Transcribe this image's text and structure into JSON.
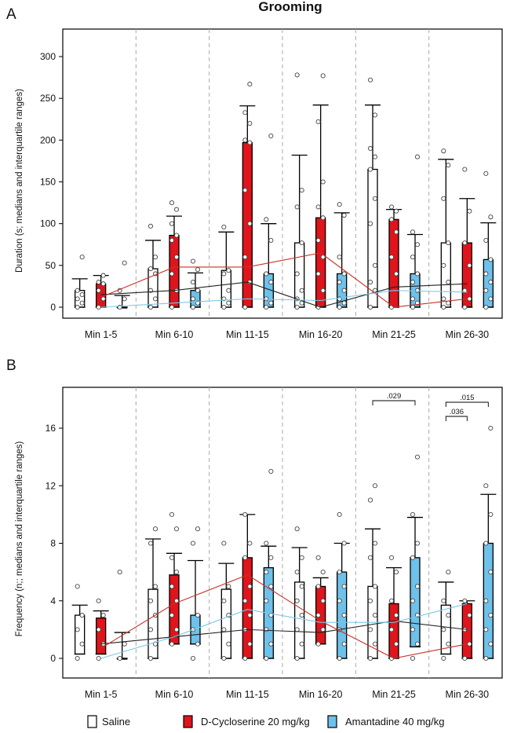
{
  "colors": {
    "saline": "#ffffff",
    "dcs": "#e0141b",
    "aman": "#6ec1ea",
    "line_saline": "#222222",
    "line_dcs": "#c8322b",
    "line_aman": "#7cc8e6"
  },
  "chart_data": [
    {
      "panel": "A",
      "type": "bar",
      "title": "Grooming",
      "ylabel": "Duration (s; medians and interquartile ranges)",
      "ylim": [
        0,
        330
      ],
      "yticks": [
        0,
        50,
        100,
        150,
        200,
        250,
        300
      ],
      "categories": [
        "Min 1-5",
        "Min 6-10",
        "Min 11-15",
        "Min 16-20",
        "Min 21-25",
        "Min 26-30"
      ],
      "series": [
        {
          "name": "Saline",
          "key": "saline",
          "values": [
            20,
            46,
            44,
            77,
            165,
            77
          ],
          "whisker": [
            34,
            80,
            90,
            182,
            242,
            177
          ],
          "points": [
            [
              0,
              5,
              10,
              15,
              20,
              60
            ],
            [
              0,
              10,
              20,
              40,
              46,
              60,
              97
            ],
            [
              0,
              5,
              10,
              20,
              40,
              44,
              96
            ],
            [
              0,
              5,
              10,
              20,
              40,
              77,
              120,
              140,
              278
            ],
            [
              0,
              20,
              30,
              50,
              100,
              130,
              165,
              180,
              190,
              230,
              272
            ],
            [
              0,
              5,
              10,
              30,
              50,
              77,
              130,
              170,
              187
            ]
          ],
          "median_line": [
            15,
            20,
            30,
            0,
            24,
            28
          ]
        },
        {
          "name": "D-Cycloserine 20 mg/kg",
          "key": "dcs",
          "values": [
            28,
            86,
            197,
            107,
            105,
            77
          ],
          "whisker": [
            38,
            109,
            241,
            242,
            117,
            130
          ],
          "points": [
            [
              0,
              10,
              20,
              28,
              30,
              38
            ],
            [
              0,
              20,
              40,
              60,
              80,
              86,
              100,
              117,
              125
            ],
            [
              0,
              30,
              60,
              100,
              140,
              197,
              200,
              220,
              233,
              267
            ],
            [
              0,
              20,
              40,
              60,
              80,
              107,
              120,
              150,
              222,
              277
            ],
            [
              0,
              40,
              60,
              90,
              105,
              115,
              120
            ],
            [
              0,
              10,
              20,
              50,
              77,
              115,
              165
            ]
          ],
          "median_line": [
            12,
            48,
            48,
            65,
            0,
            10
          ]
        },
        {
          "name": "Amantadine 40 mg/kg",
          "key": "aman",
          "values": [
            0,
            20,
            40,
            40,
            40,
            57
          ],
          "whisker": [
            14,
            41,
            100,
            113,
            87,
            101
          ],
          "points": [
            [
              0,
              10,
              20,
              53
            ],
            [
              0,
              5,
              10,
              20,
              30,
              45,
              55
            ],
            [
              0,
              5,
              10,
              30,
              40,
              80,
              105,
              205
            ],
            [
              0,
              5,
              10,
              20,
              30,
              40,
              60,
              110,
              123
            ],
            [
              0,
              5,
              10,
              20,
              30,
              40,
              60,
              75,
              90,
              180
            ],
            [
              0,
              10,
              20,
              30,
              40,
              57,
              80,
              108,
              160
            ]
          ],
          "median_line": [
            0,
            5,
            10,
            8,
            20,
            18
          ]
        }
      ]
    },
    {
      "panel": "B",
      "type": "bar",
      "ylabel": "Frequency (n;; medians and interquartile ranges)",
      "ylim": [
        0,
        19
      ],
      "yticks": [
        0,
        4,
        8,
        12,
        16
      ],
      "categories": [
        "Min 1-5",
        "Min 6-10",
        "Min 11-15",
        "Min 16-20",
        "Min 21-25",
        "Min 26-30"
      ],
      "series": [
        {
          "name": "Saline",
          "key": "saline",
          "values": [
            3,
            4.8,
            4.8,
            5.3,
            5,
            3.7
          ],
          "low": [
            0.3,
            0,
            0,
            0,
            0,
            0.3
          ],
          "whisker": [
            3.7,
            8.3,
            6.6,
            7.7,
            9,
            5.3
          ],
          "points": [
            [
              0,
              1,
              2,
              3,
              5
            ],
            [
              0,
              1,
              2,
              3,
              4,
              5,
              8,
              9
            ],
            [
              0,
              1,
              2,
              3,
              4,
              5,
              8
            ],
            [
              0,
              1,
              2,
              3,
              4,
              5,
              6,
              7,
              9
            ],
            [
              0,
              1,
              2,
              3,
              4,
              5,
              7,
              8,
              11,
              12
            ],
            [
              0,
              1,
              2,
              3,
              4,
              6
            ]
          ],
          "median_line": [
            1,
            1.5,
            2,
            1.8,
            2.6,
            2
          ]
        },
        {
          "name": "D-Cycloserine 20 mg/kg",
          "key": "dcs",
          "values": [
            2.8,
            5.8,
            7,
            5,
            3.8,
            3.8
          ],
          "low": [
            0.3,
            1,
            0,
            1,
            0,
            0
          ],
          "whisker": [
            3.3,
            7.3,
            10,
            5.6,
            6.3,
            4
          ],
          "points": [
            [
              0,
              1,
              2,
              3,
              4
            ],
            [
              1,
              2,
              3,
              4,
              5,
              6,
              7,
              9,
              10
            ],
            [
              0,
              1,
              2,
              3,
              4,
              5,
              7,
              8,
              10
            ],
            [
              1,
              2,
              3,
              4,
              5,
              6,
              7
            ],
            [
              0,
              1,
              2,
              3,
              4,
              6,
              7
            ],
            [
              0,
              1,
              2,
              3,
              4
            ]
          ],
          "median_line": [
            0.7,
            3.8,
            5.8,
            2.6,
            0,
            1
          ]
        },
        {
          "name": "Amantadine 40 mg/kg",
          "key": "aman",
          "values": [
            0,
            3,
            6.3,
            6,
            7,
            8
          ],
          "low": [
            0,
            1,
            0,
            0,
            0.8,
            0
          ],
          "whisker": [
            1.8,
            6.8,
            7.8,
            8,
            9.8,
            11.4
          ],
          "points": [
            [
              0,
              1,
              6
            ],
            [
              0,
              1,
              2,
              3,
              8,
              9
            ],
            [
              0,
              1,
              2,
              3,
              4,
              5,
              6,
              7,
              8,
              13
            ],
            [
              0,
              1,
              2,
              3,
              4,
              5,
              6,
              8,
              10
            ],
            [
              0,
              1,
              2,
              3,
              4,
              5,
              7,
              8,
              10,
              14
            ],
            [
              0,
              1,
              2,
              3,
              4,
              6,
              8,
              10,
              12,
              16
            ]
          ],
          "median_line": [
            0,
            1.5,
            3.4,
            2.5,
            2.5,
            3.8
          ]
        }
      ],
      "significance": [
        {
          "label": ".029",
          "group": 4,
          "from": 0,
          "to": 2
        },
        {
          "label": ".015",
          "group": 5,
          "from": 0,
          "to": 2
        },
        {
          "label": ".036",
          "group": 5,
          "from": 0,
          "to": 1
        }
      ]
    }
  ],
  "panel_labels": {
    "a": "A",
    "b": "B"
  },
  "legend": [
    {
      "key": "saline",
      "label": "Saline"
    },
    {
      "key": "dcs",
      "label": "D-Cycloserine  20 mg/kg"
    },
    {
      "key": "aman",
      "label": "Amantadine  40 mg/kg"
    }
  ]
}
